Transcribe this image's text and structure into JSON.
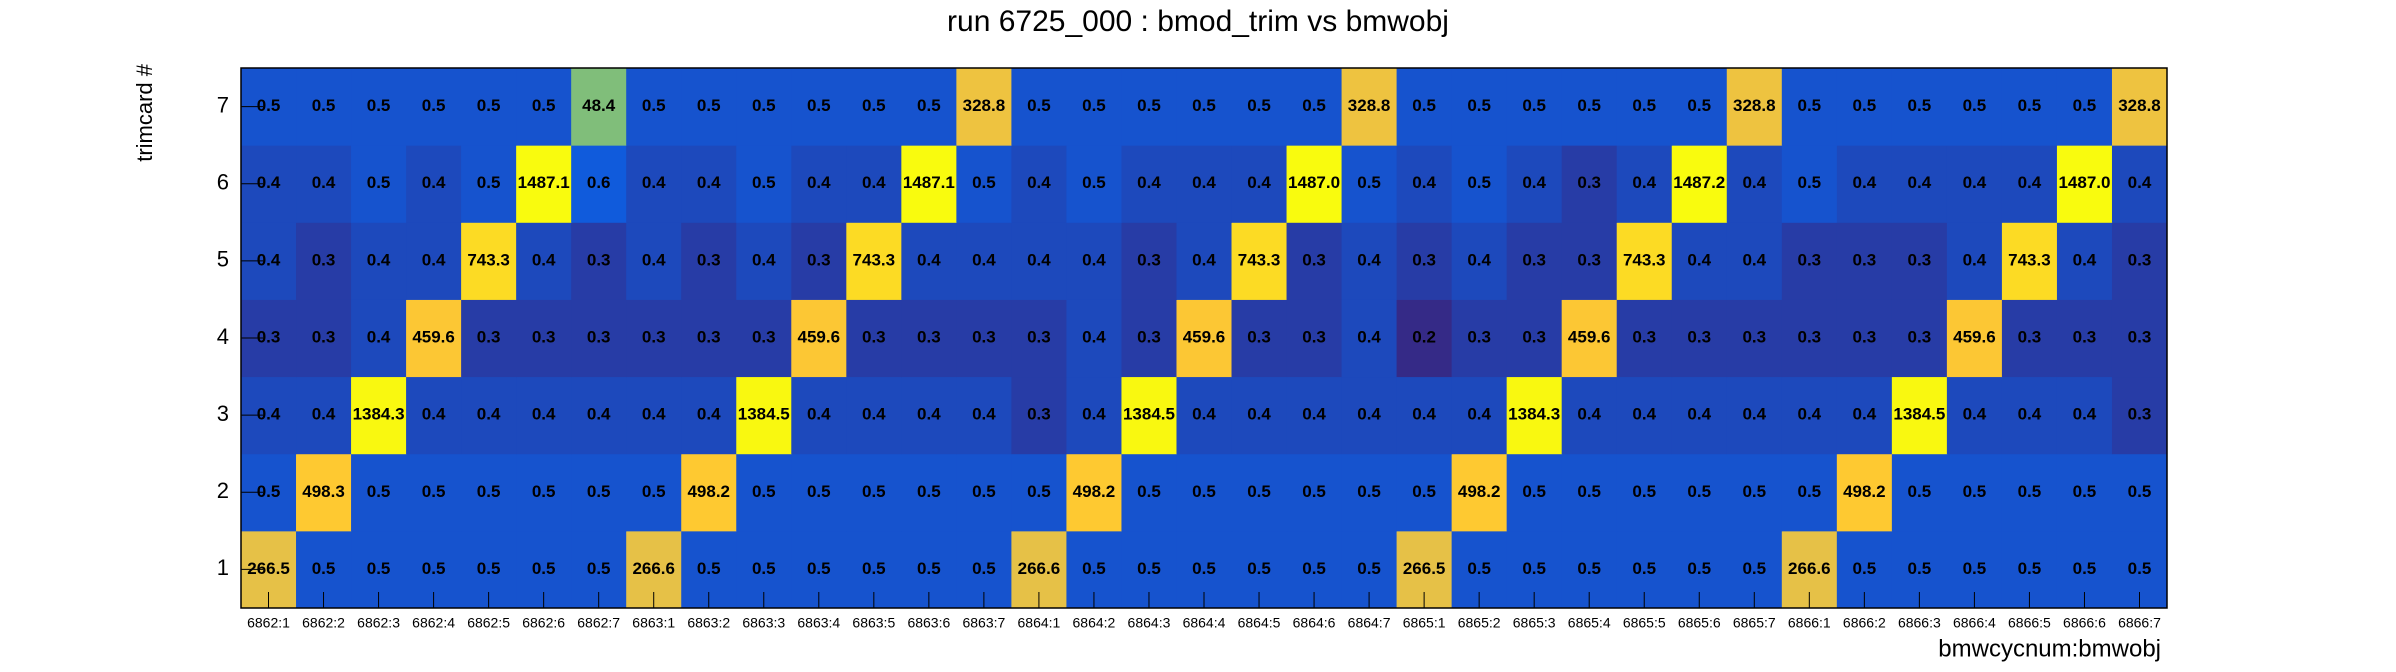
{
  "chart_data": {
    "type": "heatmap",
    "title": "run 6725_000 : bmod_trim vs bmwobj",
    "x_label": "bmwcycnum:bmwobj",
    "y_label": "trimcard #",
    "x": [
      "6862:1",
      "6862:2",
      "6862:3",
      "6862:4",
      "6862:5",
      "6862:6",
      "6862:7",
      "6863:1",
      "6863:2",
      "6863:3",
      "6863:4",
      "6863:5",
      "6863:6",
      "6863:7",
      "6864:1",
      "6864:2",
      "6864:3",
      "6864:4",
      "6864:5",
      "6864:6",
      "6864:7",
      "6865:1",
      "6865:2",
      "6865:3",
      "6865:4",
      "6865:5",
      "6865:6",
      "6865:7",
      "6866:1",
      "6866:2",
      "6866:3",
      "6866:4",
      "6866:5",
      "6866:6",
      "6866:7"
    ],
    "y": [
      "1",
      "2",
      "3",
      "4",
      "5",
      "6",
      "7"
    ],
    "z_log": true,
    "z": [
      [
        266.5,
        0.5,
        0.5,
        0.5,
        0.5,
        0.5,
        0.5,
        266.6,
        0.5,
        0.5,
        0.5,
        0.5,
        0.5,
        0.5,
        266.6,
        0.5,
        0.5,
        0.5,
        0.5,
        0.5,
        0.5,
        266.5,
        0.5,
        0.5,
        0.5,
        0.5,
        0.5,
        0.5,
        266.6,
        0.5,
        0.5,
        0.5,
        0.5,
        0.5,
        0.5
      ],
      [
        0.5,
        498.3,
        0.5,
        0.5,
        0.5,
        0.5,
        0.5,
        0.5,
        498.2,
        0.5,
        0.5,
        0.5,
        0.5,
        0.5,
        0.5,
        498.2,
        0.5,
        0.5,
        0.5,
        0.5,
        0.5,
        0.5,
        498.2,
        0.5,
        0.5,
        0.5,
        0.5,
        0.5,
        0.5,
        498.2,
        0.5,
        0.5,
        0.5,
        0.5,
        0.5
      ],
      [
        0.4,
        0.4,
        1384.3,
        0.4,
        0.4,
        0.4,
        0.4,
        0.4,
        0.4,
        1384.5,
        0.4,
        0.4,
        0.4,
        0.4,
        0.3,
        0.4,
        1384.5,
        0.4,
        0.4,
        0.4,
        0.4,
        0.4,
        0.4,
        1384.3,
        0.4,
        0.4,
        0.4,
        0.4,
        0.4,
        0.4,
        1384.5,
        0.4,
        0.4,
        0.4,
        0.3
      ],
      [
        0.3,
        0.3,
        0.4,
        459.6,
        0.3,
        0.3,
        0.3,
        0.3,
        0.3,
        0.3,
        459.6,
        0.3,
        0.3,
        0.3,
        0.3,
        0.4,
        0.3,
        459.6,
        0.3,
        0.3,
        0.4,
        0.2,
        0.3,
        0.3,
        459.6,
        0.3,
        0.3,
        0.3,
        0.3,
        0.3,
        0.3,
        459.6,
        0.3,
        0.3,
        0.3
      ],
      [
        0.4,
        0.3,
        0.4,
        0.4,
        743.3,
        0.4,
        0.3,
        0.4,
        0.3,
        0.4,
        0.3,
        743.3,
        0.4,
        0.4,
        0.4,
        0.4,
        0.3,
        0.4,
        743.3,
        0.3,
        0.4,
        0.3,
        0.4,
        0.3,
        0.3,
        743.3,
        0.4,
        0.4,
        0.3,
        0.3,
        0.3,
        0.4,
        743.3,
        0.4,
        0.3
      ],
      [
        0.4,
        0.4,
        0.5,
        0.4,
        0.5,
        1487.1,
        0.6,
        0.4,
        0.4,
        0.5,
        0.4,
        0.4,
        1487.1,
        0.5,
        0.4,
        0.5,
        0.4,
        0.4,
        0.4,
        1487.0,
        0.5,
        0.4,
        0.5,
        0.4,
        0.3,
        0.4,
        1487.2,
        0.4,
        0.5,
        0.4,
        0.4,
        0.4,
        0.4,
        1487.0,
        0.4
      ],
      [
        0.5,
        0.5,
        0.5,
        0.5,
        0.5,
        0.5,
        48.4,
        0.5,
        0.5,
        0.5,
        0.5,
        0.5,
        0.5,
        328.8,
        0.5,
        0.5,
        0.5,
        0.5,
        0.5,
        0.5,
        328.8,
        0.5,
        0.5,
        0.5,
        0.5,
        0.5,
        0.5,
        328.8,
        0.5,
        0.5,
        0.5,
        0.5,
        0.5,
        0.5,
        328.8
      ]
    ],
    "value_labels": [
      [
        "266.5",
        "0.5",
        "0.5",
        "0.5",
        "0.5",
        "0.5",
        "0.5",
        "266.6",
        "0.5",
        "0.5",
        "0.5",
        "0.5",
        "0.5",
        "0.5",
        "266.6",
        "0.5",
        "0.5",
        "0.5",
        "0.5",
        "0.5",
        "0.5",
        "266.5",
        "0.5",
        "0.5",
        "0.5",
        "0.5",
        "0.5",
        "0.5",
        "266.6",
        "0.5",
        "0.5",
        "0.5",
        "0.5",
        "0.5",
        "0.5"
      ],
      [
        "0.5",
        "498.3",
        "0.5",
        "0.5",
        "0.5",
        "0.5",
        "0.5",
        "0.5",
        "498.2",
        "0.5",
        "0.5",
        "0.5",
        "0.5",
        "0.5",
        "0.5",
        "498.2",
        "0.5",
        "0.5",
        "0.5",
        "0.5",
        "0.5",
        "0.5",
        "498.2",
        "0.5",
        "0.5",
        "0.5",
        "0.5",
        "0.5",
        "0.5",
        "498.2",
        "0.5",
        "0.5",
        "0.5",
        "0.5",
        "0.5"
      ],
      [
        "0.4",
        "0.4",
        "1384.3",
        "0.4",
        "0.4",
        "0.4",
        "0.4",
        "0.4",
        "0.4",
        "1384.5",
        "0.4",
        "0.4",
        "0.4",
        "0.4",
        "0.3",
        "0.4",
        "1384.5",
        "0.4",
        "0.4",
        "0.4",
        "0.4",
        "0.4",
        "0.4",
        "1384.3",
        "0.4",
        "0.4",
        "0.4",
        "0.4",
        "0.4",
        "0.4",
        "1384.5",
        "0.4",
        "0.4",
        "0.4",
        "0.3"
      ],
      [
        "0.3",
        "0.3",
        "0.4",
        "459.6",
        "0.3",
        "0.3",
        "0.3",
        "0.3",
        "0.3",
        "0.3",
        "459.6",
        "0.3",
        "0.3",
        "0.3",
        "0.3",
        "0.4",
        "0.3",
        "459.6",
        "0.3",
        "0.3",
        "0.4",
        "0.2",
        "0.3",
        "0.3",
        "459.6",
        "0.3",
        "0.3",
        "0.3",
        "0.3",
        "0.3",
        "0.3",
        "459.6",
        "0.3",
        "0.3",
        "0.3"
      ],
      [
        "0.4",
        "0.3",
        "0.4",
        "0.4",
        "743.3",
        "0.4",
        "0.3",
        "0.4",
        "0.3",
        "0.4",
        "0.3",
        "743.3",
        "0.4",
        "0.4",
        "0.4",
        "0.4",
        "0.3",
        "0.4",
        "743.3",
        "0.3",
        "0.4",
        "0.3",
        "0.4",
        "0.3",
        "0.3",
        "743.3",
        "0.4",
        "0.4",
        "0.3",
        "0.3",
        "0.3",
        "0.4",
        "743.3",
        "0.4",
        "0.3"
      ],
      [
        "0.4",
        "0.4",
        "0.5",
        "0.4",
        "0.5",
        "1487.1",
        "0.6",
        "0.4",
        "0.4",
        "0.5",
        "0.4",
        "0.4",
        "1487.1",
        "0.5",
        "0.4",
        "0.5",
        "0.4",
        "0.4",
        "0.4",
        "1487.0",
        "0.5",
        "0.4",
        "0.5",
        "0.4",
        "0.3",
        "0.4",
        "1487.2",
        "0.4",
        "0.5",
        "0.4",
        "0.4",
        "0.4",
        "0.4",
        "1487.0",
        "0.4"
      ],
      [
        "0.5",
        "0.5",
        "0.5",
        "0.5",
        "0.5",
        "0.5",
        "48.4",
        "0.5",
        "0.5",
        "0.5",
        "0.5",
        "0.5",
        "0.5",
        "328.8",
        "0.5",
        "0.5",
        "0.5",
        "0.5",
        "0.5",
        "0.5",
        "328.8",
        "0.5",
        "0.5",
        "0.5",
        "0.5",
        "0.5",
        "0.5",
        "328.8",
        "0.5",
        "0.5",
        "0.5",
        "0.5",
        "0.5",
        "0.5",
        "328.8"
      ]
    ]
  }
}
